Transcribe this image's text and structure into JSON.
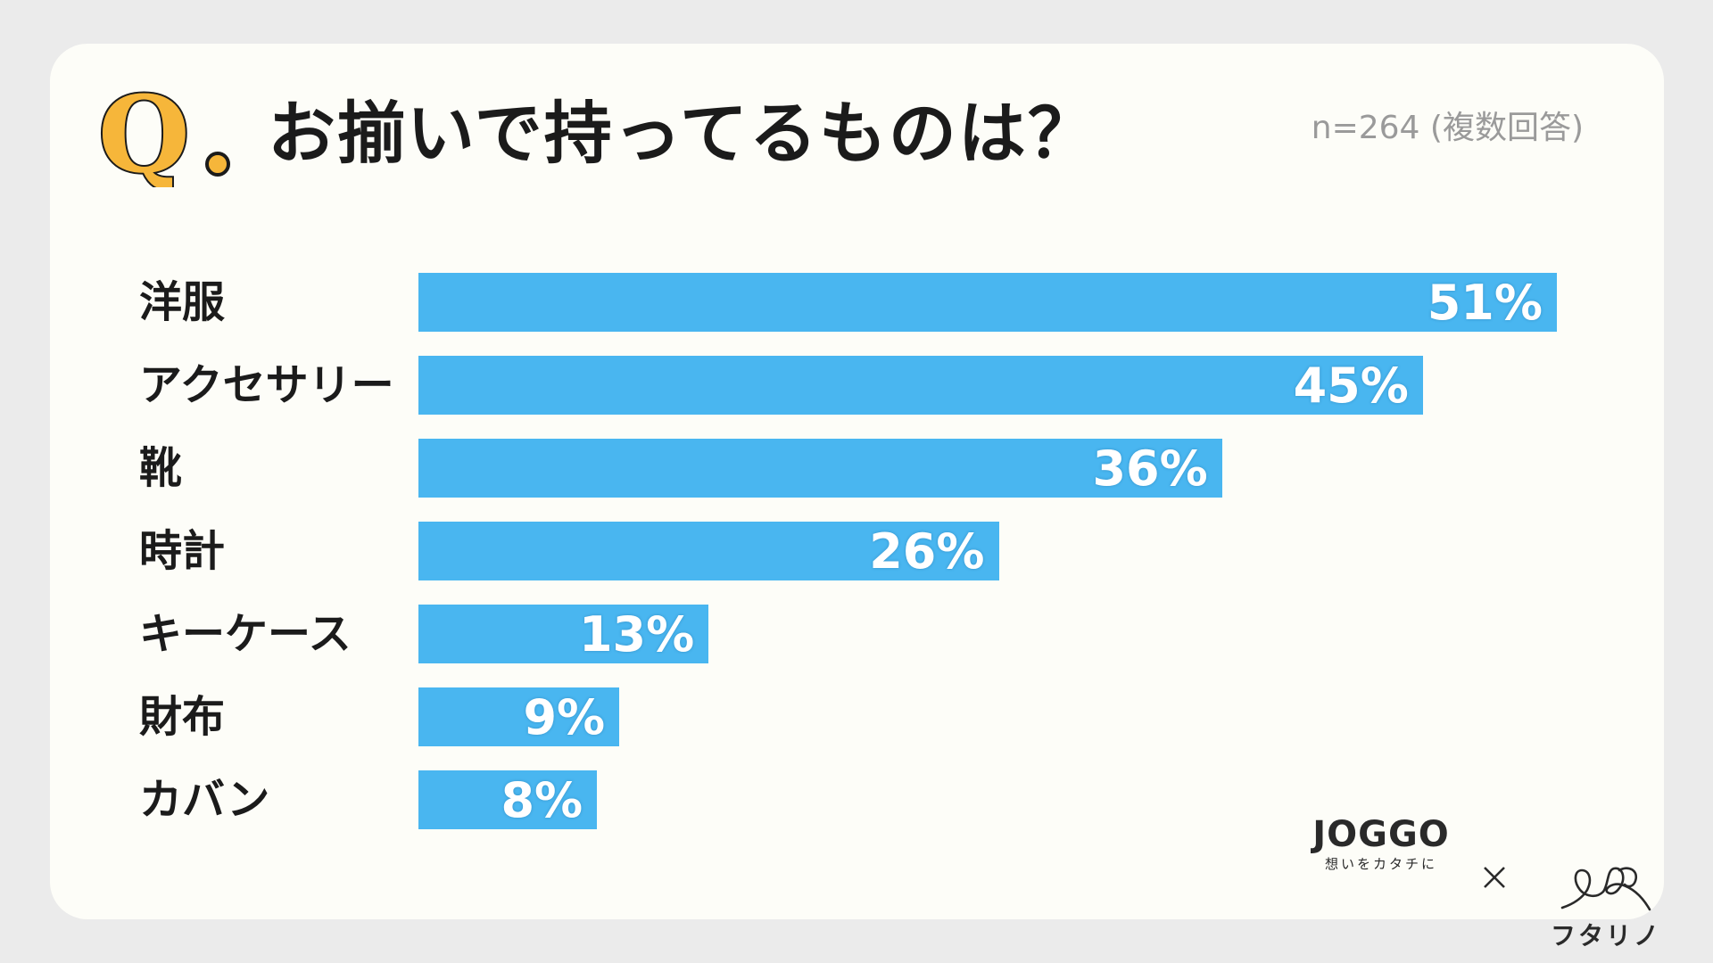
{
  "header": {
    "q_letter": "Q",
    "question": "お揃いで持ってるものは？",
    "sample": "n=264 (複数回答)"
  },
  "chart_data": {
    "type": "bar",
    "orientation": "horizontal",
    "title": "お揃いで持ってるものは？",
    "categories": [
      "洋服",
      "アクセサリー",
      "靴",
      "時計",
      "キーケース",
      "財布",
      "カバン"
    ],
    "values": [
      51,
      45,
      36,
      26,
      13,
      9,
      8
    ],
    "value_labels": [
      "51%",
      "45%",
      "36%",
      "26%",
      "13%",
      "9%",
      "8%"
    ],
    "unit": "%",
    "xlim": [
      0,
      51
    ],
    "bar_color": "#49b6f0",
    "grid": false,
    "legend": "none"
  },
  "footer": {
    "brand1": "JOGGO",
    "brand1_tagline": "想いをカタチに",
    "separator": "×",
    "brand2": "フタリノ"
  },
  "colors": {
    "background": "#ebebeb",
    "card": "#fdfdf8",
    "bar": "#49b6f0",
    "accent": "#f6b63a",
    "text": "#1b1b1b",
    "muted": "#9a9a9a"
  }
}
